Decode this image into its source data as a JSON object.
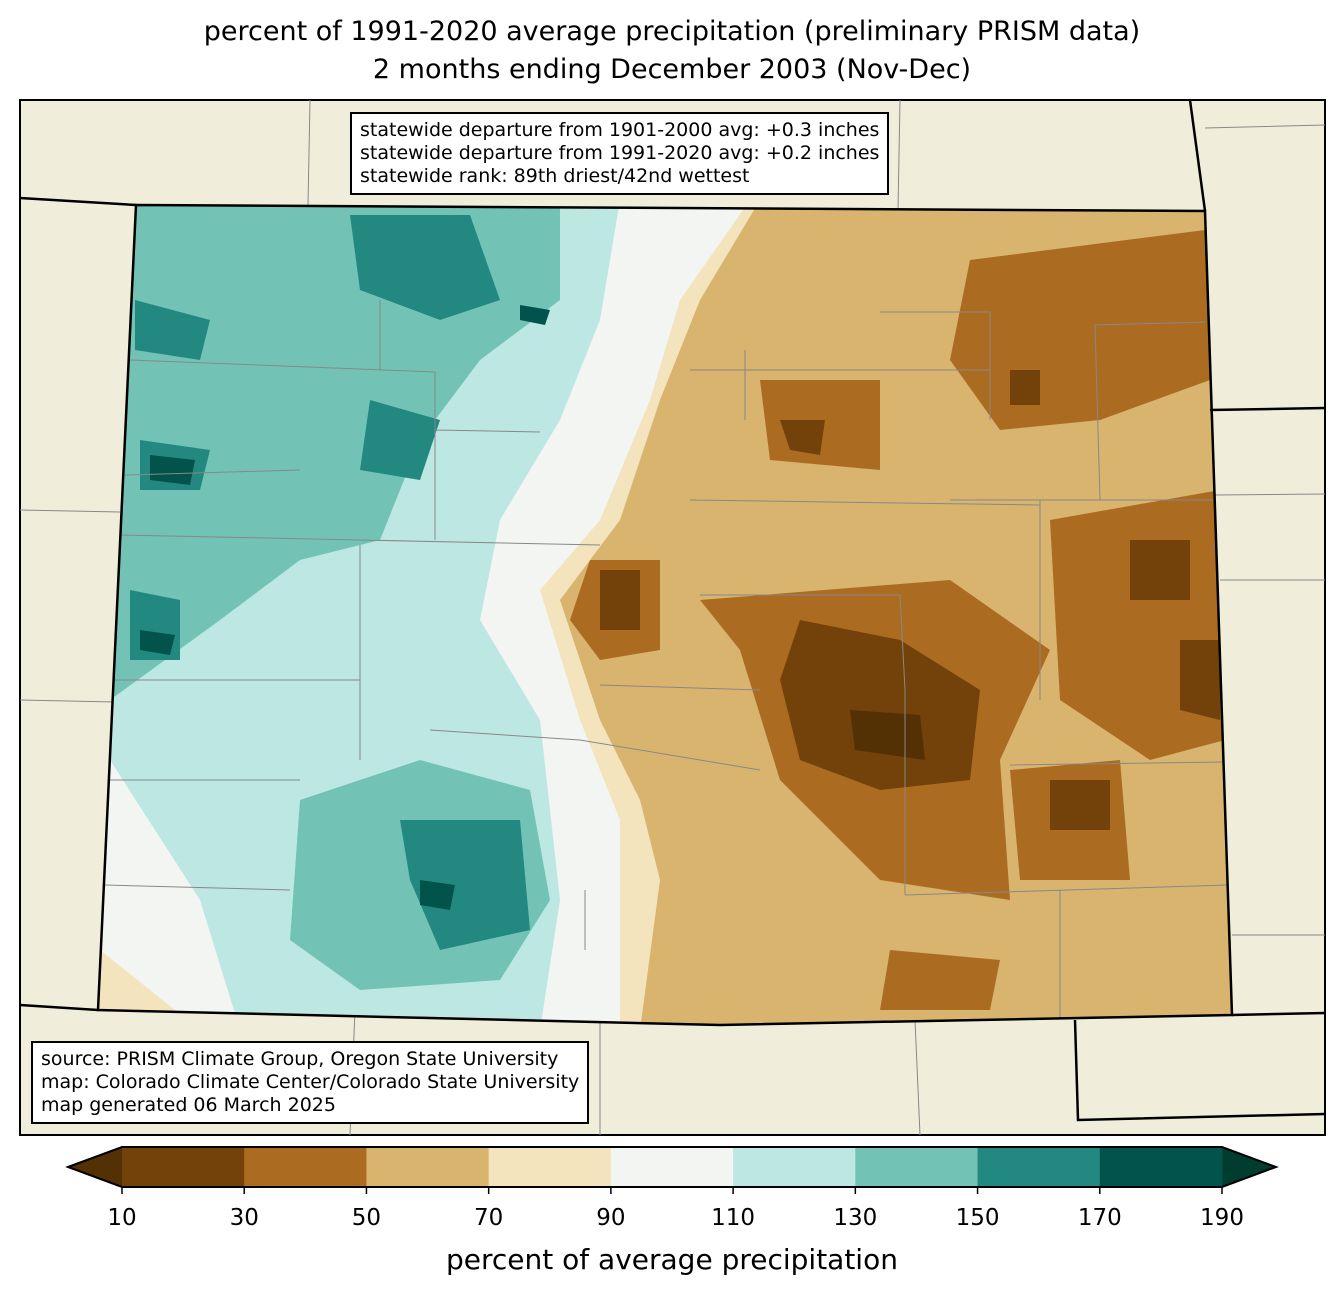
{
  "title": {
    "line1": "percent of 1991-2020 average precipitation (preliminary PRISM data)",
    "line2": "2 months ending December 2003 (Nov-Dec)"
  },
  "stats": {
    "line1": "statewide departure from 1901-2000 avg: +0.3 inches",
    "line2": "statewide departure from 1991-2020 avg: +0.2 inches",
    "line3": "statewide rank: 89th driest/42nd wettest"
  },
  "credits": {
    "line1": "source: PRISM Climate Group, Oregon State University",
    "line2": "map: Colorado Climate Center/Colorado State University",
    "line3": "map generated 06 March 2025"
  },
  "colorbar": {
    "label": "percent of average precipitation",
    "ticks": [
      "10",
      "30",
      "50",
      "70",
      "90",
      "110",
      "130",
      "150",
      "170",
      "190"
    ],
    "colors": [
      "#73420a",
      "#ab6c22",
      "#d9b46e",
      "#f3e4bd",
      "#f3f5f3",
      "#bde7e2",
      "#72c3b6",
      "#228880",
      "#01534b"
    ],
    "under_color": "#543005",
    "over_color": "#003c30"
  }
}
